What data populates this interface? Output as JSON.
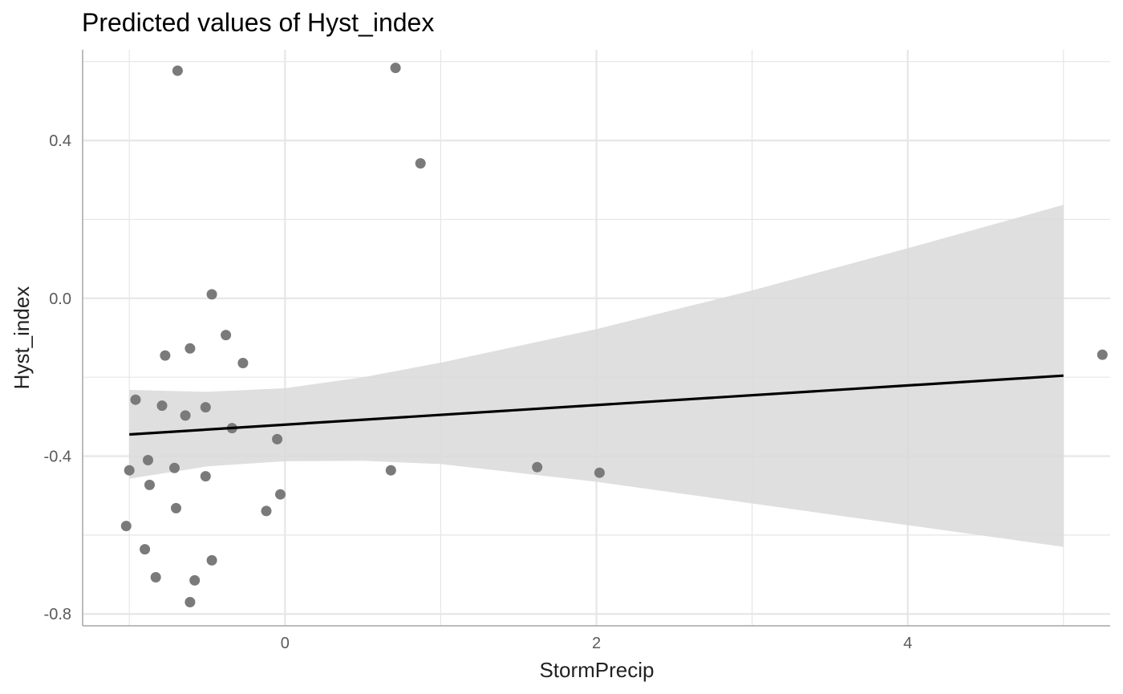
{
  "chart_data": {
    "type": "scatter",
    "title": "Predicted values of Hyst_index",
    "xlabel": "StormPrecip",
    "ylabel": "Hyst_index",
    "xlim": [
      -1.3,
      5.3
    ],
    "ylim": [
      -0.83,
      0.63
    ],
    "x_ticks": [
      0,
      2,
      4
    ],
    "x_tick_labels": [
      "0",
      "2",
      "4"
    ],
    "x_minor_ticks": [
      -1,
      1,
      3,
      5
    ],
    "y_ticks": [
      -0.8,
      -0.4,
      0.0,
      0.4
    ],
    "y_tick_labels": [
      "-0.8",
      "-0.4",
      "0.0",
      "0.4"
    ],
    "y_minor_ticks": [
      -0.6,
      -0.2,
      0.2,
      0.6
    ],
    "grid": true,
    "colors": {
      "points": "#7a7a7a",
      "line": "#000000",
      "ribbon": "#d9d9d9",
      "grid": "#e6e6e6",
      "axis": "#bbbbbb"
    },
    "points": [
      {
        "x": -0.69,
        "y": 0.577
      },
      {
        "x": 0.71,
        "y": 0.584
      },
      {
        "x": 0.87,
        "y": 0.342
      },
      {
        "x": -0.47,
        "y": 0.01
      },
      {
        "x": -0.38,
        "y": -0.093
      },
      {
        "x": -0.61,
        "y": -0.127
      },
      {
        "x": -0.77,
        "y": -0.145
      },
      {
        "x": -0.27,
        "y": -0.164
      },
      {
        "x": -0.96,
        "y": -0.257
      },
      {
        "x": -0.79,
        "y": -0.272
      },
      {
        "x": -0.64,
        "y": -0.297
      },
      {
        "x": -0.51,
        "y": -0.276
      },
      {
        "x": -0.34,
        "y": -0.329
      },
      {
        "x": -0.05,
        "y": -0.357
      },
      {
        "x": -0.88,
        "y": -0.41
      },
      {
        "x": -1.0,
        "y": -0.436
      },
      {
        "x": -0.71,
        "y": -0.43
      },
      {
        "x": -0.51,
        "y": -0.451
      },
      {
        "x": -0.87,
        "y": -0.473
      },
      {
        "x": -0.03,
        "y": -0.497
      },
      {
        "x": -0.12,
        "y": -0.539
      },
      {
        "x": -0.7,
        "y": -0.532
      },
      {
        "x": -1.02,
        "y": -0.577
      },
      {
        "x": -0.9,
        "y": -0.636
      },
      {
        "x": -0.47,
        "y": -0.664
      },
      {
        "x": -0.83,
        "y": -0.707
      },
      {
        "x": -0.58,
        "y": -0.715
      },
      {
        "x": -0.61,
        "y": -0.77
      },
      {
        "x": 0.68,
        "y": -0.436
      },
      {
        "x": 1.62,
        "y": -0.428
      },
      {
        "x": 2.02,
        "y": -0.442
      },
      {
        "x": 5.25,
        "y": -0.143
      }
    ],
    "fit_line": [
      {
        "x": -1.0,
        "y": -0.345
      },
      {
        "x": 5.0,
        "y": -0.196
      }
    ],
    "ribbon": {
      "x": [
        -1.0,
        -0.5,
        0.0,
        0.5,
        1.0,
        2.0,
        3.0,
        4.0,
        5.0
      ],
      "upper": [
        -0.232,
        -0.237,
        -0.228,
        -0.2,
        -0.163,
        -0.078,
        0.02,
        0.127,
        0.237
      ],
      "lower": [
        -0.457,
        -0.426,
        -0.413,
        -0.412,
        -0.42,
        -0.465,
        -0.52,
        -0.575,
        -0.63
      ]
    }
  }
}
